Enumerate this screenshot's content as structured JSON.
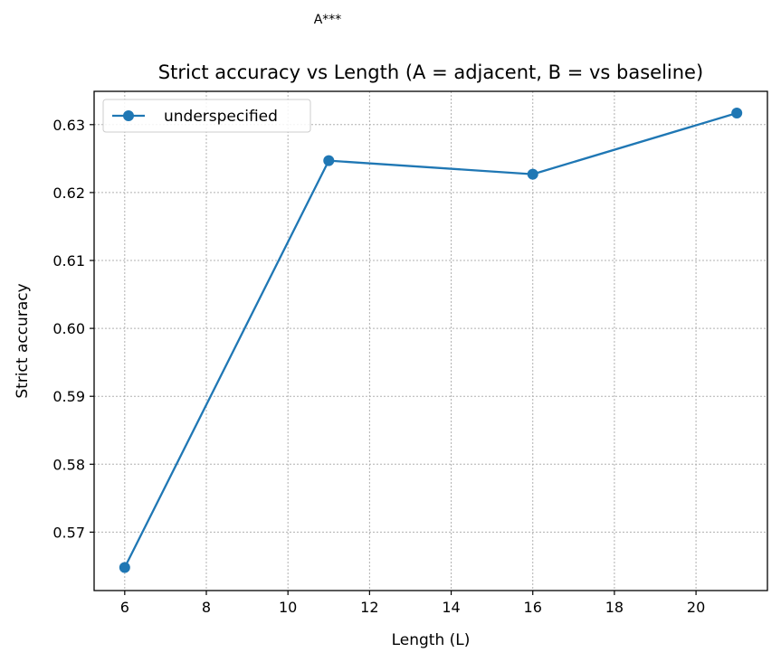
{
  "chart_data": {
    "type": "line",
    "title": "Strict accuracy vs Length (A = adjacent, B = vs baseline)",
    "xlabel": "Length (L)",
    "ylabel": "Strict accuracy",
    "xlim": [
      5.25,
      21.75
    ],
    "ylim": [
      0.5614,
      0.6349
    ],
    "xticks": [
      6,
      8,
      10,
      12,
      14,
      16,
      18,
      20
    ],
    "yticks": [
      0.57,
      0.58,
      0.59,
      0.6,
      0.61,
      0.62,
      0.63
    ],
    "ytick_labels": [
      "0.57",
      "0.58",
      "0.59",
      "0.60",
      "0.61",
      "0.62",
      "0.63"
    ],
    "grid": true,
    "legend_position": "upper-left",
    "series": [
      {
        "name": "underspecified",
        "color": "#1f77b4",
        "marker": "circle",
        "x": [
          6,
          11,
          16,
          21
        ],
        "y": [
          0.5648,
          0.6247,
          0.6227,
          0.6317
        ]
      }
    ],
    "annotations": [
      {
        "text": "A***",
        "x": 11,
        "position": "above-axes"
      }
    ]
  }
}
